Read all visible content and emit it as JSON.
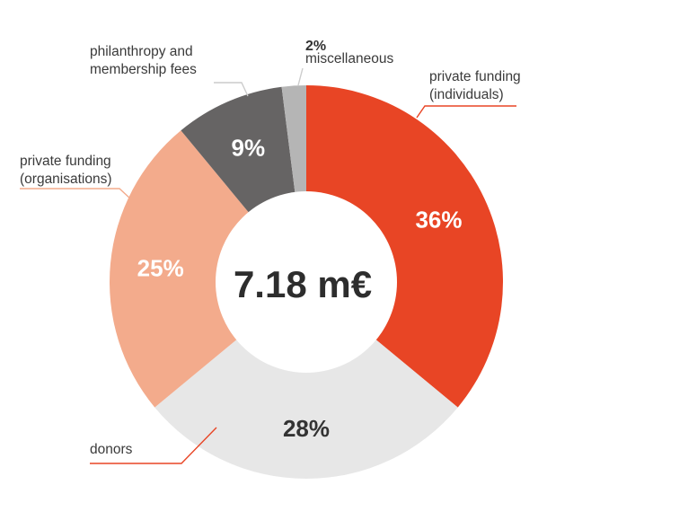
{
  "chart_data": {
    "type": "pie",
    "total_label": "7.18 m€",
    "slices": [
      {
        "category": "private funding (individuals)",
        "label_lines": [
          "private funding",
          "(individuals)"
        ],
        "value": 36,
        "value_label": "36%",
        "color": "#e84525",
        "text_color": "#ffffff",
        "line_color": "#e84525"
      },
      {
        "category": "donors",
        "label_lines": [
          "donors"
        ],
        "value": 28,
        "value_label": "28%",
        "color": "#e7e7e7",
        "text_color": "#333333",
        "line_color": "#e84525"
      },
      {
        "category": "private funding (organisations)",
        "label_lines": [
          "private funding",
          "(organisations)"
        ],
        "value": 25,
        "value_label": "25%",
        "color": "#f3ab8c",
        "text_color": "#ffffff",
        "line_color": "#f3ab8c"
      },
      {
        "category": "philanthropy and membership fees",
        "label_lines": [
          "philanthropy and",
          "membership fees"
        ],
        "value": 9,
        "value_label": "9%",
        "color": "#666464",
        "text_color": "#ffffff",
        "line_color": "#cccccc"
      },
      {
        "category": "miscellaneous",
        "label_lines": [
          "miscellaneous"
        ],
        "value": 2,
        "value_label": "2%",
        "color": "#b5b5b5",
        "text_color": "#333333",
        "line_color": "#cccccc"
      }
    ]
  }
}
